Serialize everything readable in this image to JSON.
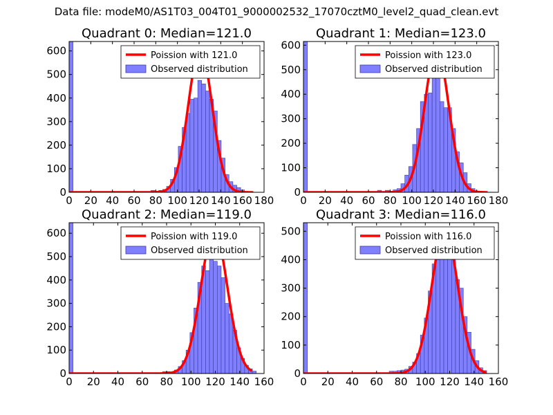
{
  "figure_title": "Data file: modeM0/AS1T03_004T01_9000002532_17070cztM0_level2_quad_clean.evt",
  "colors": {
    "bar": "#7f7fff",
    "bar_edge": "#3a3aa0",
    "poisson": "#ff0000"
  },
  "chart_data": [
    {
      "type": "bar",
      "title": "Quadrant 0: Median=121.0",
      "xlim": [
        0,
        180
      ],
      "ylim": [
        0,
        640
      ],
      "xticks": [
        0,
        20,
        40,
        60,
        80,
        100,
        120,
        140,
        160,
        180
      ],
      "yticks": [
        0,
        100,
        200,
        300,
        400,
        500,
        600
      ],
      "legend": {
        "position": "top-right",
        "line_label": "Poission with 121.0",
        "bar_label": "Observed distribution"
      },
      "poisson_mean": 121.0,
      "poisson_peak": 610,
      "bin_width": 3.6,
      "histogram": {
        "bin_starts": [
          0,
          75.6,
          82.8,
          86.4,
          90,
          93.6,
          97.2,
          100.8,
          104.4,
          108,
          111.6,
          115.2,
          118.8,
          122.4,
          126,
          129.6,
          133.2,
          136.8,
          140.4,
          144,
          147.6,
          151.2,
          154.8,
          158.4
        ],
        "counts": [
          640,
          8,
          8,
          12,
          25,
          55,
          105,
          195,
          275,
          335,
          395,
          400,
          475,
          460,
          430,
          395,
          345,
          220,
          145,
          75,
          45,
          30,
          20,
          10
        ]
      }
    },
    {
      "type": "bar",
      "title": "Quadrant 1: Median=123.0",
      "xlim": [
        0,
        180
      ],
      "ylim": [
        0,
        615
      ],
      "xticks": [
        0,
        20,
        40,
        60,
        80,
        100,
        120,
        140,
        160,
        180
      ],
      "yticks": [
        0,
        100,
        200,
        300,
        400,
        500,
        600
      ],
      "legend": {
        "position": "top-right",
        "line_label": "Poission with 123.0",
        "bar_label": "Observed distribution"
      },
      "poisson_mean": 123.0,
      "poisson_peak": 585,
      "bin_width": 3.6,
      "histogram": {
        "bin_starts": [
          0,
          68.4,
          75.6,
          82.8,
          86.4,
          90,
          93.6,
          97.2,
          100.8,
          104.4,
          108,
          111.6,
          115.2,
          118.8,
          122.4,
          126,
          129.6,
          133.2,
          136.8,
          140.4,
          144,
          147.6,
          151.2,
          154.8
        ],
        "counts": [
          615,
          8,
          8,
          10,
          15,
          35,
          70,
          105,
          195,
          260,
          370,
          400,
          405,
          490,
          555,
          370,
          345,
          345,
          260,
          165,
          120,
          80,
          35,
          15
        ]
      }
    },
    {
      "type": "bar",
      "title": "Quadrant 2: Median=119.0",
      "xlim": [
        0,
        160
      ],
      "ylim": [
        0,
        645
      ],
      "xticks": [
        0,
        20,
        40,
        60,
        80,
        100,
        120,
        140,
        160
      ],
      "yticks": [
        0,
        100,
        200,
        300,
        400,
        500,
        600
      ],
      "legend": {
        "position": "top-right",
        "line_label": "Poission with 119.0",
        "bar_label": "Observed distribution"
      },
      "poisson_mean": 119.0,
      "poisson_peak": 610,
      "bin_width": 3.2,
      "histogram": {
        "bin_starts": [
          0,
          76.8,
          80,
          86.4,
          89.6,
          92.8,
          96,
          99.2,
          102.4,
          105.6,
          108.8,
          112,
          115.2,
          118.4,
          121.6,
          124.8,
          128,
          131.2,
          134.4,
          137.6,
          140.8,
          144,
          147.2,
          150.4
        ],
        "counts": [
          645,
          8,
          8,
          15,
          30,
          55,
          100,
          175,
          280,
          390,
          460,
          440,
          540,
          480,
          460,
          410,
          300,
          255,
          185,
          110,
          65,
          35,
          20,
          10
        ]
      }
    },
    {
      "type": "bar",
      "title": "Quadrant 3: Median=116.0",
      "xlim": [
        0,
        160
      ],
      "ylim": [
        0,
        530
      ],
      "xticks": [
        0,
        20,
        40,
        60,
        80,
        100,
        120,
        140,
        160
      ],
      "yticks": [
        0,
        100,
        200,
        300,
        400,
        500
      ],
      "legend": {
        "position": "top-right",
        "line_label": "Poission with 116.0",
        "bar_label": "Observed distribution"
      },
      "poisson_mean": 116.0,
      "poisson_peak": 505,
      "bin_width": 3.2,
      "histogram": {
        "bin_starts": [
          0,
          70.4,
          73.6,
          76.8,
          80,
          83.2,
          86.4,
          89.6,
          92.8,
          96,
          99.2,
          102.4,
          105.6,
          108.8,
          112,
          115.2,
          118.4,
          121.6,
          124.8,
          128,
          131.2,
          134.4,
          137.6,
          140.8,
          144,
          147.2
        ],
        "counts": [
          530,
          8,
          8,
          10,
          12,
          15,
          25,
          40,
          70,
          135,
          195,
          290,
          385,
          400,
          420,
          445,
          430,
          415,
          330,
          300,
          200,
          145,
          85,
          45,
          20,
          10
        ]
      }
    }
  ]
}
